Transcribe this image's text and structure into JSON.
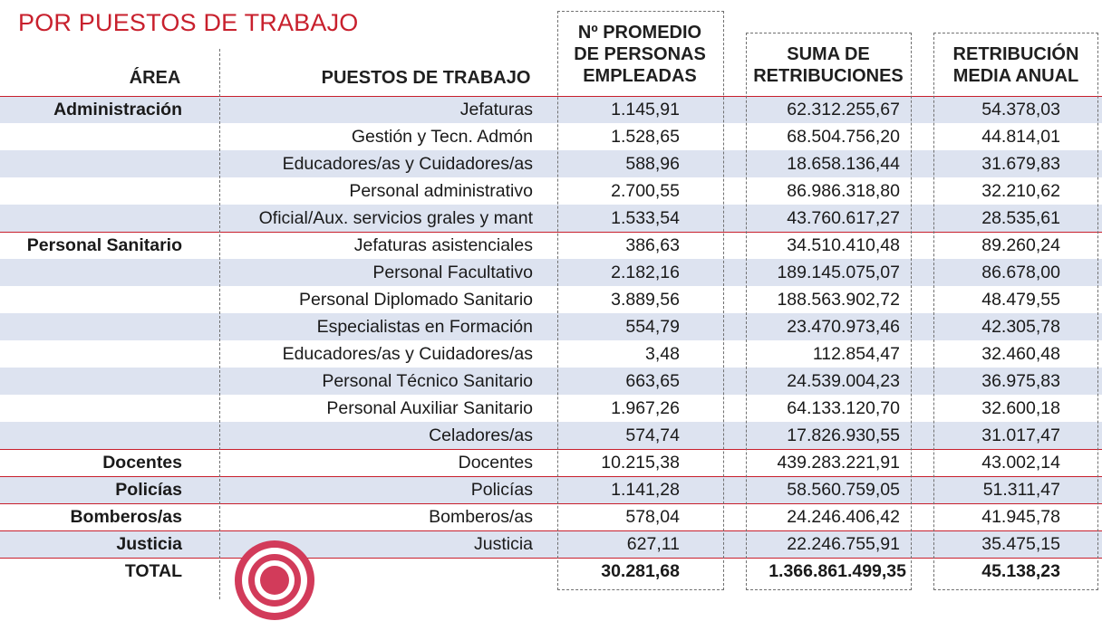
{
  "title": "POR PUESTOS DE TRABAJO",
  "headers": {
    "area": "ÁREA",
    "puesto": "PUESTOS DE TRABAJO",
    "promedio": [
      "Nº PROMEDIO",
      "DE PERSONAS",
      "EMPLEADAS"
    ],
    "suma": [
      "SUMA DE",
      "RETRIBUCIONES"
    ],
    "media": [
      "RETRIBUCIÓN",
      "MEDIA ANUAL"
    ]
  },
  "rows": [
    {
      "area": "Administración",
      "puesto": "Jefaturas",
      "promedio": "1.145,91",
      "suma": "62.312.255,67",
      "media": "54.378,03"
    },
    {
      "area": "",
      "puesto": "Gestión y Tecn. Admón",
      "promedio": "1.528,65",
      "suma": "68.504.756,20",
      "media": "44.814,01"
    },
    {
      "area": "",
      "puesto": "Educadores/as y Cuidadores/as",
      "promedio": "588,96",
      "suma": "18.658.136,44",
      "media": "31.679,83"
    },
    {
      "area": "",
      "puesto": "Personal administrativo",
      "promedio": "2.700,55",
      "suma": "86.986.318,80",
      "media": "32.210,62"
    },
    {
      "area": "",
      "puesto": "Oficial/Aux. servicios grales y mant",
      "promedio": "1.533,54",
      "suma": "43.760.617,27",
      "media": "28.535,61"
    },
    {
      "area": "Personal Sanitario",
      "puesto": "Jefaturas asistenciales",
      "promedio": "386,63",
      "suma": "34.510.410,48",
      "media": "89.260,24"
    },
    {
      "area": "",
      "puesto": "Personal Facultativo",
      "promedio": "2.182,16",
      "suma": "189.145.075,07",
      "media": "86.678,00"
    },
    {
      "area": "",
      "puesto": "Personal Diplomado Sanitario",
      "promedio": "3.889,56",
      "suma": "188.563.902,72",
      "media": "48.479,55"
    },
    {
      "area": "",
      "puesto": "Especialistas en Formación",
      "promedio": "554,79",
      "suma": "23.470.973,46",
      "media": "42.305,78"
    },
    {
      "area": "",
      "puesto": "Educadores/as y Cuidadores/as",
      "promedio": "3,48",
      "suma": "112.854,47",
      "media": "32.460,48"
    },
    {
      "area": "",
      "puesto": "Personal Técnico Sanitario",
      "promedio": "663,65",
      "suma": "24.539.004,23",
      "media": "36.975,83"
    },
    {
      "area": "",
      "puesto": "Personal Auxiliar Sanitario",
      "promedio": "1.967,26",
      "suma": "64.133.120,70",
      "media": "32.600,18"
    },
    {
      "area": "",
      "puesto": "Celadores/as",
      "promedio": "574,74",
      "suma": "17.826.930,55",
      "media": "31.017,47"
    },
    {
      "area": "Docentes",
      "puesto": "Docentes",
      "promedio": "10.215,38",
      "suma": "439.283.221,91",
      "media": "43.002,14"
    },
    {
      "area": "Policías",
      "puesto": "Policías",
      "promedio": "1.141,28",
      "suma": "58.560.759,05",
      "media": "51.311,47"
    },
    {
      "area": "Bomberos/as",
      "puesto": "Bomberos/as",
      "promedio": "578,04",
      "suma": "24.246.406,42",
      "media": "41.945,78"
    },
    {
      "area": "Justicia",
      "puesto": "Justicia",
      "promedio": "627,11",
      "suma": "22.246.755,91",
      "media": "35.475,15"
    }
  ],
  "total": {
    "label": "TOTAL",
    "promedio": "30.281,68",
    "suma": "1.366.861.499,35",
    "media": "45.138,23"
  },
  "colors": {
    "accent": "#c8202d",
    "stripe": "#dde3f0",
    "text": "#1a1a1a"
  },
  "icons": {
    "target": "target-icon"
  }
}
